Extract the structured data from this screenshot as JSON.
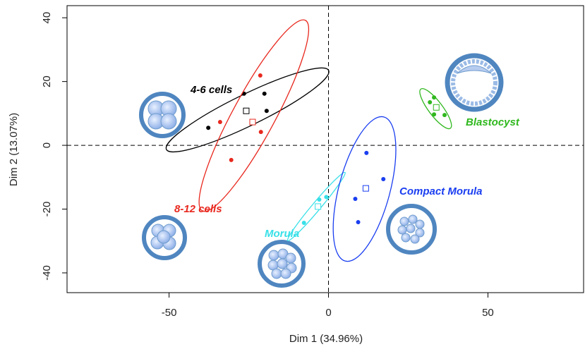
{
  "chart_data": {
    "type": "scatter",
    "x_label": "Dim 1 (34.96%)",
    "y_label": "Dim 2 (13.07%)",
    "xlim": [
      -82,
      80
    ],
    "ylim": [
      -46.2,
      43.8
    ],
    "xticks": [
      -50,
      0,
      50
    ],
    "yticks": [
      -40,
      -20,
      0,
      20,
      40
    ],
    "zero_lines": true,
    "series": [
      {
        "name": "4-6 cells",
        "color": "#000000",
        "x": [
          -37.7,
          -26.5,
          -19.4,
          -20.1
        ],
        "y": [
          5.5,
          16.2,
          10.8,
          16.2
        ],
        "centroid": [
          -25.8,
          10.8
        ],
        "ellipse": {
          "center": [
            -25.4,
            11.1
          ],
          "semi_axes": [
            28.3,
            4.9
          ],
          "angle": 26
        }
      },
      {
        "name": "8-12 cells",
        "color": "#e8281e",
        "x": [
          -21.4,
          -34,
          -21.2,
          -30.5
        ],
        "y": [
          21.9,
          7.3,
          4.2,
          -4.6
        ],
        "centroid": [
          -23.8,
          7.3
        ],
        "ellipse": {
          "center": [
            -23.4,
            9.3
          ],
          "semi_axes": [
            34,
            6.6
          ],
          "angle": 61.6
        }
      },
      {
        "name": "Morula",
        "color": "#38e0e8",
        "x": [
          -2.9,
          -0.7,
          -7.7
        ],
        "y": [
          -17,
          -16.2,
          -24.3
        ],
        "centroid": [
          -3.3,
          -19.2
        ],
        "ellipse": {
          "center": [
            -3.8,
            -19.2
          ],
          "semi_axes": [
            14,
            1.3
          ],
          "angle": 50
        }
      },
      {
        "name": "Compact Morula",
        "color": "#1a3ef0",
        "x": [
          11.9,
          17.2,
          8.4,
          9.3
        ],
        "y": [
          -2.4,
          -10.6,
          -16.8,
          -24.1
        ],
        "centroid": [
          11.7,
          -13.5
        ],
        "ellipse": {
          "center": [
            11.3,
            -13.7
          ],
          "semi_axes": [
            23.4,
            8
          ],
          "angle": 75
        }
      },
      {
        "name": "Blastocyst",
        "color": "#30b81e",
        "x": [
          31.8,
          33.1,
          33.1,
          36.4
        ],
        "y": [
          13.5,
          15,
          9.7,
          9.5
        ],
        "centroid": [
          33.8,
          11.9
        ],
        "ellipse": {
          "center": [
            33.6,
            11.5
          ],
          "semi_axes": [
            7.7,
            2.2
          ],
          "angle": -53
        }
      }
    ]
  }
}
